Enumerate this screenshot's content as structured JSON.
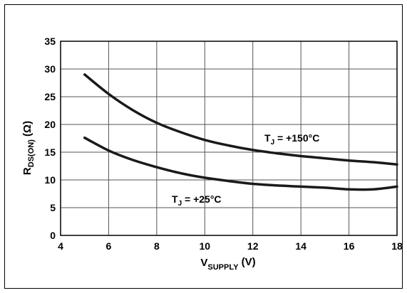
{
  "chart_data": {
    "type": "line",
    "x": [
      5,
      6,
      7,
      8,
      9,
      10,
      11,
      12,
      13,
      14,
      15,
      16,
      17,
      18
    ],
    "xlim": [
      4,
      18
    ],
    "ylim": [
      0,
      35
    ],
    "xticks": [
      "4",
      "6",
      "8",
      "10",
      "12",
      "14",
      "16",
      "18"
    ],
    "yticks": [
      "0",
      "5",
      "10",
      "15",
      "20",
      "25",
      "30",
      "35"
    ],
    "xlabel": {
      "main": "V",
      "sub": "SUPPLY",
      "unit": " (V)"
    },
    "ylabel": {
      "main": "R",
      "sub": "DS(ON)",
      "unit": " (Ω)"
    },
    "grid": true,
    "series": [
      {
        "name": "T_J = +150°C",
        "label": {
          "main": "T",
          "sub": "J",
          "rest": " = +150°C"
        },
        "values": [
          29.0,
          25.5,
          22.6,
          20.3,
          18.6,
          17.2,
          16.2,
          15.4,
          14.8,
          14.3,
          13.9,
          13.5,
          13.2,
          12.8
        ]
      },
      {
        "name": "T_J = +25°C",
        "label": {
          "main": "T",
          "sub": "J",
          "rest": " = +25°C"
        },
        "values": [
          17.6,
          15.3,
          13.6,
          12.3,
          11.2,
          10.4,
          9.8,
          9.3,
          9.0,
          8.8,
          8.6,
          8.3,
          8.3,
          8.8
        ]
      }
    ]
  }
}
